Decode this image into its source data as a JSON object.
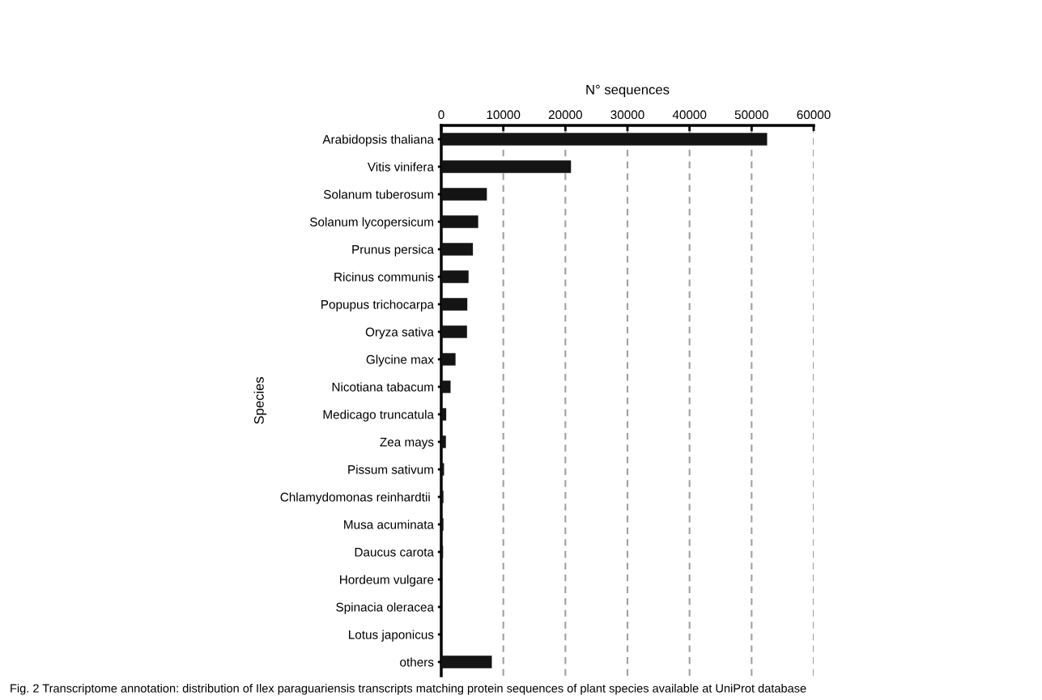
{
  "chart_data": {
    "type": "bar",
    "orientation": "horizontal",
    "xlabel": "N° sequences",
    "ylabel": "Species",
    "categories": [
      "Arabidopsis thaliana",
      "Vitis vinifera",
      "Solanum tuberosum",
      "Solanum lycopersicum",
      "Prunus persica",
      "Ricinus communis",
      "Popupus trichocarpa",
      "Oryza sativa",
      "Glycine max",
      "Nicotiana tabacum",
      "Medicago truncatula",
      "Zea mays",
      "Pissum sativum",
      "Chlamydomonas reinhardtii ",
      "Musa acuminata",
      "Daucus carota",
      "Hordeum vulgare",
      "Spinacia oleracea",
      "Lotus japonicus",
      "others"
    ],
    "values": [
      52500,
      20900,
      7350,
      5950,
      5100,
      4400,
      4200,
      4150,
      2300,
      1500,
      800,
      750,
      450,
      350,
      350,
      300,
      null,
      null,
      null,
      8150
    ],
    "color": "#141414",
    "xlim": [
      0,
      60000
    ],
    "xticks": [
      0,
      10000,
      20000,
      30000,
      40000,
      50000,
      60000
    ],
    "grid": "x",
    "annotations": [
      "Fig. 2 Transcriptome annotation: distribution of Ilex paraguariensis transcripts matching protein sequences of plant species available at UniProt database"
    ]
  }
}
